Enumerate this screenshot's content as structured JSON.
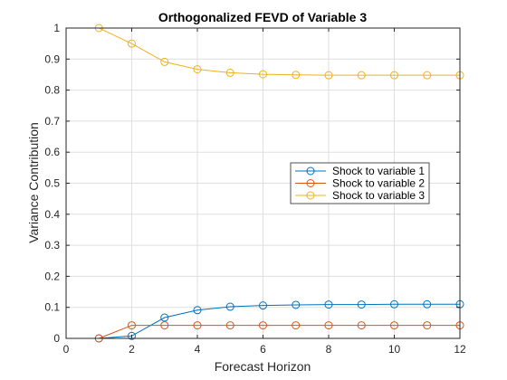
{
  "chart_data": {
    "type": "line",
    "title": "Orthogonalized FEVD of Variable 3",
    "xlabel": "Forecast Horizon",
    "ylabel": "Variance Contribution",
    "xlim": [
      0,
      12
    ],
    "ylim": [
      0,
      1
    ],
    "xticks": [
      0,
      2,
      4,
      6,
      8,
      10,
      12
    ],
    "yticks": [
      0,
      0.1,
      0.2,
      0.3,
      0.4,
      0.5,
      0.6,
      0.7,
      0.8,
      0.9,
      1
    ],
    "grid": true,
    "legend_position": "middle-right",
    "x": [
      1,
      2,
      3,
      4,
      5,
      6,
      7,
      8,
      9,
      10,
      11,
      12
    ],
    "series": [
      {
        "name": "Shock to variable 1",
        "color": "#0072BD",
        "marker": "circle",
        "values": [
          0,
          0.008,
          0.067,
          0.091,
          0.102,
          0.106,
          0.108,
          0.109,
          0.109,
          0.11,
          0.11,
          0.11
        ]
      },
      {
        "name": "Shock to variable 2",
        "color": "#D95319",
        "marker": "circle",
        "values": [
          0,
          0.042,
          0.042,
          0.042,
          0.042,
          0.042,
          0.042,
          0.042,
          0.042,
          0.042,
          0.042,
          0.042
        ]
      },
      {
        "name": "Shock to variable 3",
        "color": "#EDB120",
        "marker": "circle",
        "values": [
          1,
          0.95,
          0.891,
          0.867,
          0.856,
          0.851,
          0.849,
          0.848,
          0.848,
          0.848,
          0.848,
          0.848
        ]
      }
    ]
  }
}
